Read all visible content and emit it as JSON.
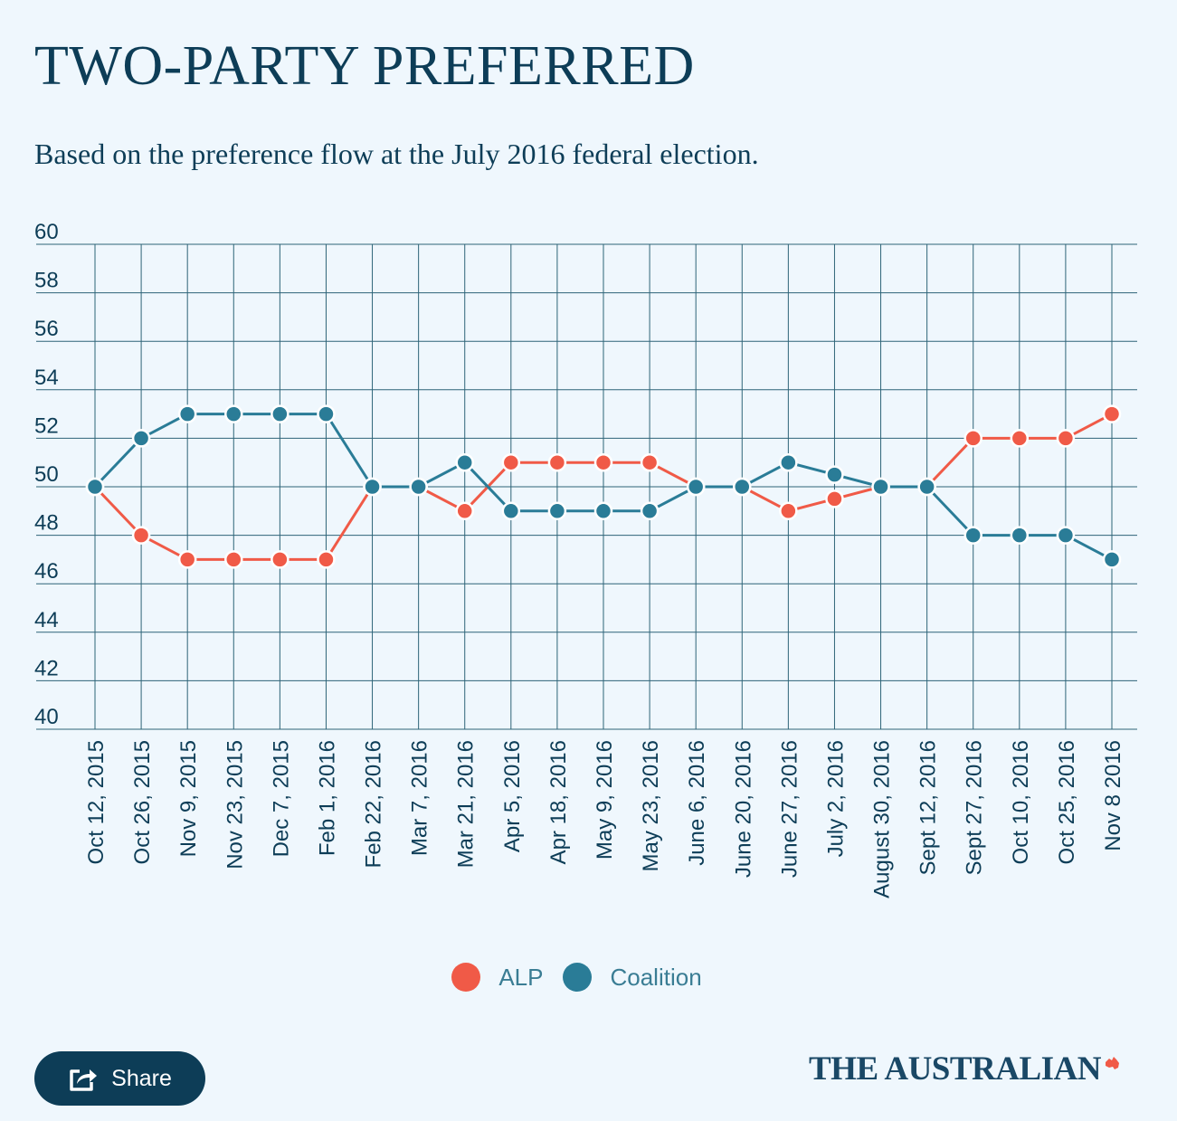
{
  "header": {
    "title": "TWO-PARTY PREFERRED",
    "subtitle": "Based on the preference flow at the July 2016 federal election."
  },
  "chart_data": {
    "type": "line",
    "categories": [
      "Oct 12, 2015",
      "Oct 26, 2015",
      "Nov 9, 2015",
      "Nov 23, 2015",
      "Dec 7, 2015",
      "Feb 1, 2016",
      "Feb 22, 2016",
      "Mar 7, 2016",
      "Mar 21, 2016",
      "Apr 5, 2016",
      "Apr 18, 2016",
      "May 9, 2016",
      "May 23, 2016",
      "June 6, 2016",
      "June 20, 2016",
      "June 27, 2016",
      "July 2, 2016",
      "August 30, 2016",
      "Sept 12, 2016",
      "Sept 27, 2016",
      "Oct 10, 2016",
      "Oct 25, 2016",
      "Nov 8 2016"
    ],
    "series": [
      {
        "name": "ALP",
        "color": "#f05a47",
        "values": [
          50,
          48,
          47,
          47,
          47,
          47,
          50,
          50,
          49,
          51,
          51,
          51,
          51,
          50,
          50,
          49,
          49.5,
          50,
          50,
          52,
          52,
          52,
          53
        ]
      },
      {
        "name": "Coalition",
        "color": "#2a7c97",
        "values": [
          50,
          52,
          53,
          53,
          53,
          53,
          50,
          50,
          51,
          49,
          49,
          49,
          49,
          50,
          50,
          51,
          50.5,
          50,
          50,
          48,
          48,
          48,
          47
        ]
      }
    ],
    "yticks": [
      "60",
      "58",
      "56",
      "54",
      "52",
      "50",
      "48",
      "46",
      "44",
      "42",
      "40"
    ],
    "ylim": [
      40,
      60
    ],
    "grid": true,
    "legend_position": "bottom-center"
  },
  "share": {
    "label": "Share",
    "icon": "share-icon"
  },
  "brand": {
    "name": "THE AUSTRALIAN",
    "icon": "map-of-australia-icon",
    "mark_color": "#f05a47"
  }
}
